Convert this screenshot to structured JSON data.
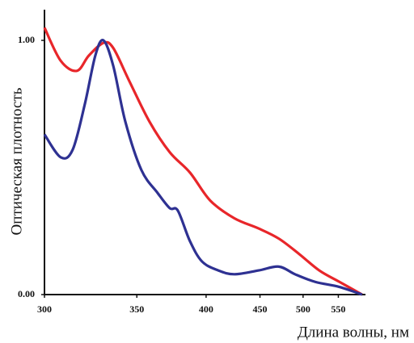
{
  "chart_data": {
    "type": "line",
    "x_label": "Длина волны, нм",
    "y_label": "Оптическая плотность",
    "xscale": "reciprocal",
    "xlim": [
      300,
      590
    ],
    "ylim": [
      0,
      1.1
    ],
    "xticks": [
      300,
      350,
      400,
      450,
      500,
      550
    ],
    "yticks": [
      {
        "value": 0,
        "label": "0.00"
      },
      {
        "value": 1,
        "label": "1.00"
      }
    ],
    "series": [
      {
        "color": "#e8262a",
        "x": [
          300,
          307.7,
          315.8,
          322.1,
          330.1,
          335.7,
          345.3,
          358.2,
          372.1,
          387.1,
          403.4,
          424.8,
          448.6,
          470.6,
          494.8,
          521.7,
          551.7,
          589.8
        ],
        "values": [
          1.05,
          0.92,
          0.88,
          0.94,
          0.99,
          0.97,
          0.84,
          0.68,
          0.56,
          0.48,
          0.37,
          0.3,
          0.26,
          0.22,
          0.16,
          0.095,
          0.05,
          0
        ]
      },
      {
        "color": "#2e3192",
        "x": [
          300,
          307.7,
          313.7,
          320,
          325.6,
          330.1,
          335.7,
          342.9,
          352.9,
          363.6,
          372.1,
          378.0,
          387.1,
          396.7,
          410.3,
          424.8,
          448.6,
          470.6,
          489.8,
          516.1,
          551.7,
          589.8
        ],
        "values": [
          0.63,
          0.54,
          0.57,
          0.75,
          0.94,
          1.0,
          0.9,
          0.68,
          0.49,
          0.4,
          0.34,
          0.33,
          0.21,
          0.13,
          0.095,
          0.08,
          0.095,
          0.11,
          0.08,
          0.05,
          0.03,
          0
        ]
      }
    ]
  }
}
